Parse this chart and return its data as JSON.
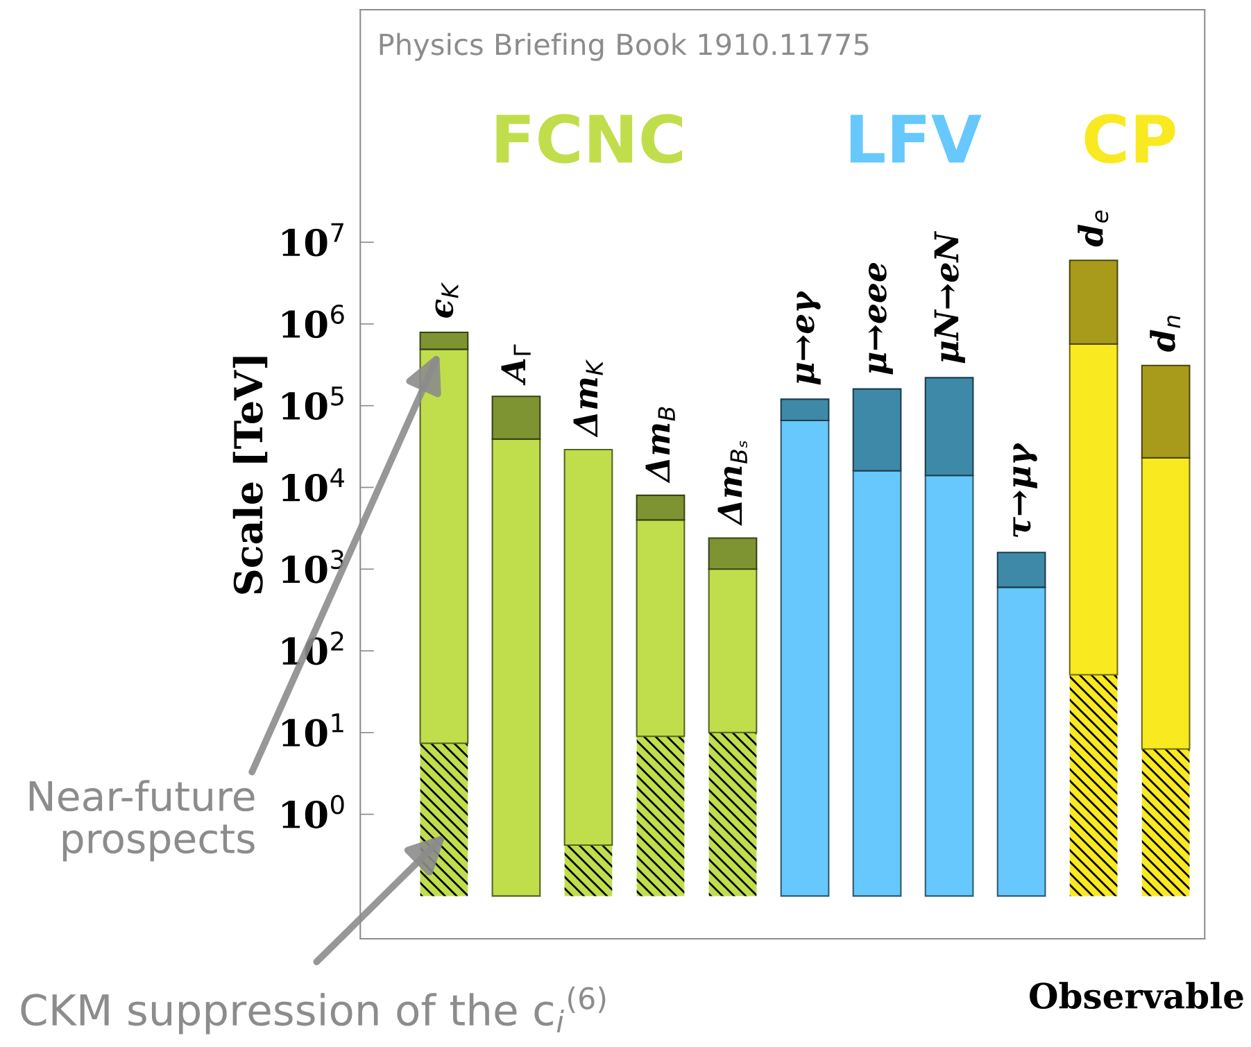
{
  "chart_data": {
    "type": "bar",
    "ylabel": "Scale [TeV]",
    "xlabel": "Observable",
    "log": true,
    "ylim": [
      0.03,
      7000000000
    ],
    "yticks": [
      {
        "value": 1,
        "label": "10$^{0}$"
      },
      {
        "value": 10,
        "label": "10$^{1}$"
      },
      {
        "value": 100,
        "label": "10$^{2}$"
      },
      {
        "value": 1000,
        "label": "10$^{3}$"
      },
      {
        "value": 10000,
        "label": "10$^{4}$"
      },
      {
        "value": 100000,
        "label": "10$^{5}$"
      },
      {
        "value": 1000000,
        "label": "10$^{6}$"
      },
      {
        "value": 10000000,
        "label": "10$^{7}$"
      }
    ],
    "categories": [
      "ϵ$_{K}$",
      "A$_{Γ}$",
      "Δm$_{K}$",
      "Δm$_{B}$",
      "Δm$_{Bₛ}$",
      "μ→eγ",
      "μ→eee",
      "μN→eN",
      "τ→μγ",
      "d$_{e}$",
      "d$_{n}$"
    ],
    "annotations": [
      "Physics Briefing Book 1910.11775",
      "Near-future\nprospects",
      "CKM suppression of the c$_{i}$$^{(6)}$"
    ],
    "series": [
      {
        "color": "#c0de4c",
        "base": [
          0.1,
          null,
          0.1,
          0.1,
          0.1,
          null,
          null,
          null,
          null,
          null,
          null
        ],
        "values": [
          7.3,
          null,
          0.32,
          8.9,
          9.9,
          null,
          null,
          null,
          null,
          null,
          null
        ]
      },
      {
        "color": "#f9e920",
        "base": [
          null,
          null,
          null,
          null,
          null,
          null,
          null,
          null,
          null,
          0.1,
          0.1
        ],
        "values": [
          null,
          null,
          null,
          null,
          null,
          null,
          null,
          null,
          null,
          50.9,
          6.2
        ]
      },
      {
        "name": "FCNC",
        "color": "#c0de4c",
        "base": [
          7.4,
          0.1,
          0.42,
          9,
          10,
          null,
          null,
          null,
          null,
          null,
          null
        ],
        "values": [
          490000,
          39000,
          29000,
          4000,
          1000,
          null,
          null,
          null,
          null,
          null,
          null
        ]
      },
      {
        "name": "LFV",
        "color": "#66c8fc",
        "base": [
          null,
          null,
          null,
          null,
          null,
          0.1,
          0.1,
          0.1,
          0.1,
          null,
          null
        ],
        "values": [
          null,
          null,
          null,
          null,
          null,
          66000,
          16000,
          14000,
          600,
          null,
          null
        ]
      },
      {
        "name": "CP",
        "color": "#f9e920",
        "base": [
          null,
          null,
          null,
          null,
          null,
          null,
          null,
          null,
          null,
          51,
          6.3
        ],
        "values": [
          null,
          null,
          null,
          null,
          null,
          null,
          null,
          null,
          null,
          570000,
          23000
        ]
      },
      {
        "color": "#7e9432",
        "base": [
          490000,
          39000,
          null,
          4000,
          1000,
          null,
          null,
          null,
          null,
          null,
          null
        ],
        "values": [
          300000,
          91000,
          null,
          4000,
          1400,
          null,
          null,
          null,
          null,
          null,
          null
        ]
      },
      {
        "color": "#3e89a8",
        "base": [
          null,
          null,
          null,
          null,
          null,
          66000,
          16000,
          14000,
          600,
          null,
          null
        ],
        "values": [
          null,
          null,
          null,
          null,
          null,
          54000,
          144000,
          206000,
          1000,
          null,
          null
        ]
      },
      {
        "color": "#a89b1c",
        "base": [
          null,
          null,
          null,
          null,
          null,
          null,
          null,
          null,
          null,
          570000,
          23000
        ],
        "values": [
          null,
          null,
          null,
          null,
          null,
          null,
          null,
          null,
          null,
          5430000,
          287000
        ]
      }
    ]
  }
}
